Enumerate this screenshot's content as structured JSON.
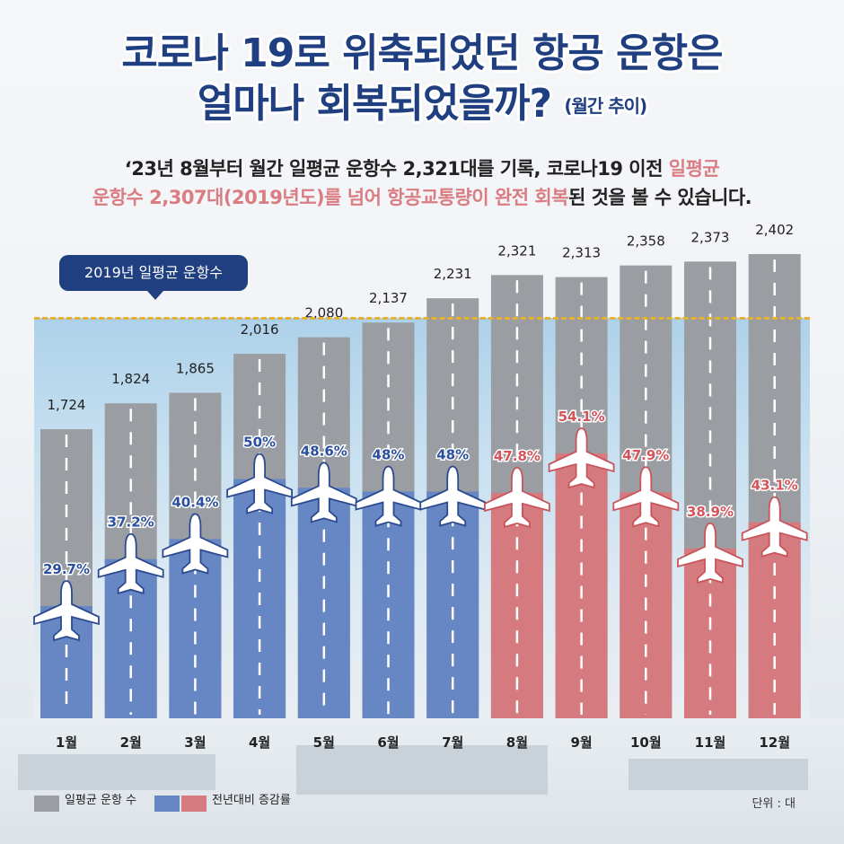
{
  "title_line1": "코로나 19로 위축되었던 항공 운항은",
  "title_line2": "얼마나 회복되었을까?",
  "title_note": "(월간 추이)",
  "desc_line1_a": "‘23년 8월부터 월간 일평균 운항수 2,321대를 기록, 코로나19 이전 ",
  "desc_line1_b": "일평균",
  "desc_line2_a": "운항수 2,307대(2019년도)를 넘어 항공교통량이 완전 회복",
  "desc_line2_b": "된 것을 볼 수 있습니다.",
  "callout": "2019년 일평균 운항수",
  "unit": "단위 : 대",
  "legend": {
    "gray": "일평균 운항 수",
    "rate": "전년대비 증감률"
  },
  "colors": {
    "gray": "#9a9ea3",
    "blue": "#6686c4",
    "red": "#d57b80",
    "navy": "#1f3f80",
    "dash": "#e8b030"
  },
  "chart_data": {
    "type": "bar",
    "categories": [
      "1월",
      "2월",
      "3월",
      "4월",
      "5월",
      "6월",
      "7월",
      "8월",
      "9월",
      "10월",
      "11월",
      "12월"
    ],
    "series": [
      {
        "name": "일평균 운항 수",
        "values": [
          1724,
          1824,
          1865,
          2016,
          2080,
          2137,
          2231,
          2321,
          2313,
          2358,
          2373,
          2402
        ],
        "labels": [
          "1,724",
          "1,824",
          "1,865",
          "2,016",
          "2,080",
          "2,137",
          "2,231",
          "2,321",
          "2,313",
          "2,358",
          "2,373",
          "2,402"
        ]
      },
      {
        "name": "전년대비 증감률",
        "values": [
          29.7,
          37.2,
          40.4,
          50,
          48.6,
          48,
          48,
          47.8,
          54.1,
          47.9,
          38.9,
          43.1
        ],
        "labels": [
          "29.7%",
          "37.2%",
          "40.4%",
          "50%",
          "48.6%",
          "48%",
          "48%",
          "47.8%",
          "54.1%",
          "47.9%",
          "38.9%",
          "43.1%"
        ]
      }
    ],
    "reference_line": {
      "label": "2019년 일평균 운항수",
      "value": 2307
    },
    "unit": "단위 : 대"
  }
}
